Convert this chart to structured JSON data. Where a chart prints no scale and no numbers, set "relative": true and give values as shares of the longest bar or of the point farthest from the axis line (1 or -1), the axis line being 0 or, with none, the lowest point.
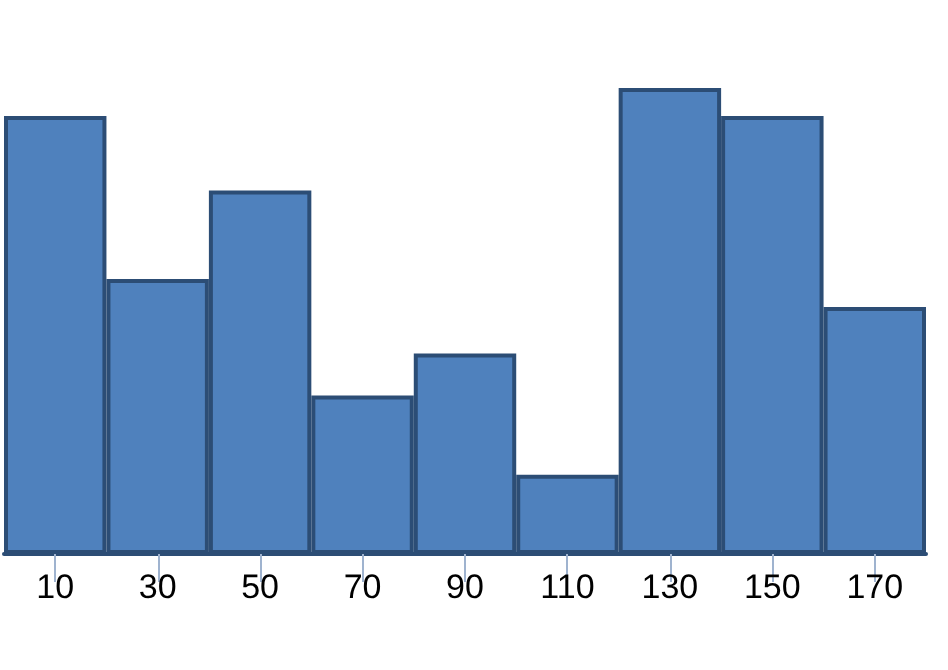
{
  "chart_data": {
    "type": "bar",
    "relative": true,
    "categories": [
      "10",
      "30",
      "50",
      "70",
      "90",
      "110",
      "130",
      "150",
      "170"
    ],
    "values": [
      0.94,
      0.59,
      0.78,
      0.34,
      0.43,
      0.17,
      1,
      0.94,
      0.53
    ],
    "color": "#4f81bd",
    "grid": false
  }
}
